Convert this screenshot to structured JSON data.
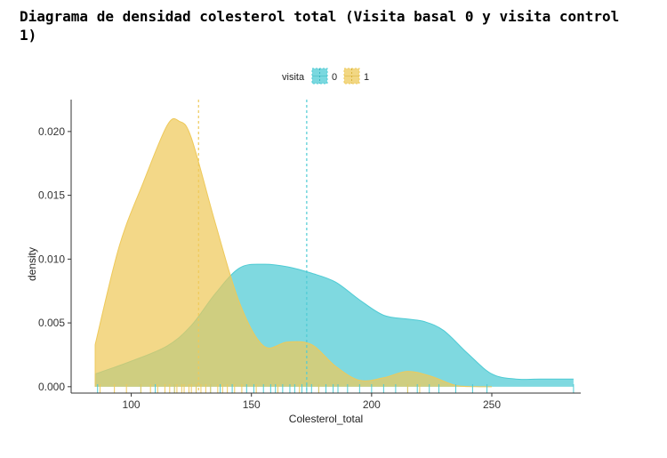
{
  "page": {
    "title": "Diagrama de densidad colesterol total (Visita basal 0 y visita control 1)"
  },
  "chart_data": {
    "type": "area",
    "title": "",
    "xlabel": "Colesterol_total",
    "ylabel": "density",
    "xlim": [
      75,
      287
    ],
    "ylim": [
      -0.0005,
      0.0225
    ],
    "x_ticks": [
      100,
      150,
      200,
      250
    ],
    "x_tick_labels": [
      "100",
      "150",
      "200",
      "250"
    ],
    "y_ticks": [
      0.0,
      0.005,
      0.01,
      0.015,
      0.02
    ],
    "y_tick_labels": [
      "0.000",
      "0.005",
      "0.010",
      "0.015",
      "0.020"
    ],
    "grid": false,
    "legend": {
      "title": "visita",
      "placement": "top",
      "entries": [
        "0",
        "1"
      ]
    },
    "series": [
      {
        "name": "0",
        "color": "#4ecbd4",
        "mean_line": 173,
        "x": [
          85,
          100,
          115,
          125,
          135,
          145,
          155,
          165,
          175,
          185,
          195,
          205,
          215,
          222,
          230,
          240,
          250,
          260,
          270,
          284
        ],
        "values": [
          0.001,
          0.002,
          0.0032,
          0.0048,
          0.0073,
          0.0093,
          0.0096,
          0.0094,
          0.0089,
          0.0082,
          0.0068,
          0.0056,
          0.0053,
          0.0051,
          0.0044,
          0.0026,
          0.001,
          0.0006,
          0.0006,
          0.0006
        ]
      },
      {
        "name": "1",
        "color": "#eec95a",
        "mean_line": 128,
        "x": [
          85,
          95,
          105,
          115,
          120,
          125,
          135,
          145,
          155,
          165,
          175,
          185,
          195,
          205,
          215,
          225,
          235,
          245,
          250
        ],
        "values": [
          0.0033,
          0.011,
          0.016,
          0.0205,
          0.0208,
          0.0195,
          0.0128,
          0.0066,
          0.0032,
          0.0035,
          0.0033,
          0.0016,
          0.0005,
          0.0007,
          0.0012,
          0.0008,
          0.0001,
          0.0,
          0.0
        ]
      }
    ],
    "rug": {
      "0": [
        86,
        104,
        110,
        118,
        127,
        133,
        137,
        142,
        148,
        151,
        155,
        158,
        160,
        163,
        166,
        168,
        171,
        173,
        175,
        178,
        181,
        184,
        186,
        190,
        195,
        200,
        205,
        210,
        215,
        219,
        224,
        228,
        235,
        242,
        248,
        284
      ],
      "1": [
        87,
        93,
        98,
        104,
        108,
        111,
        114,
        116,
        118,
        119,
        121,
        122,
        124,
        125,
        127,
        129,
        131,
        133,
        136,
        138,
        140,
        143,
        146,
        152,
        161,
        170,
        178,
        215,
        220
      ]
    }
  }
}
